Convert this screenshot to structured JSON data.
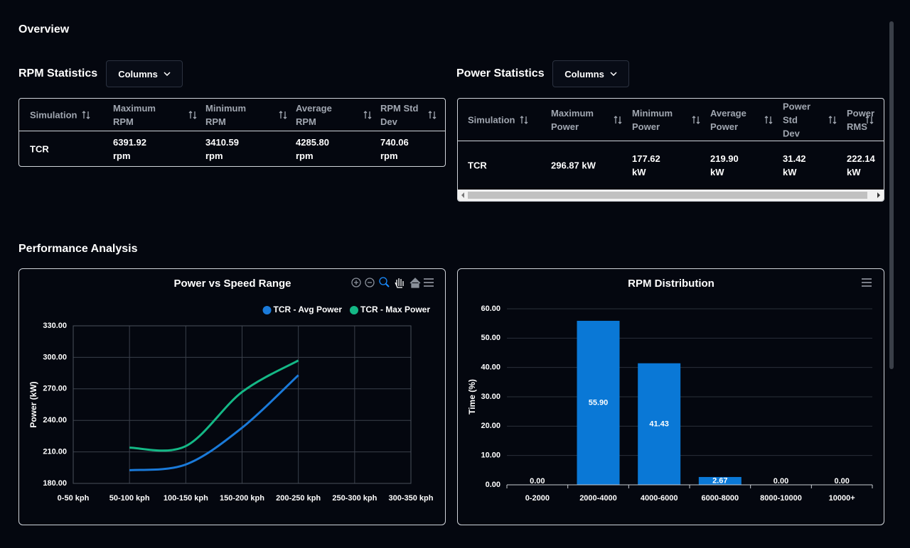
{
  "header": {
    "title": "Overview"
  },
  "rpm_table": {
    "title": "RPM Statistics",
    "button": "Columns",
    "columns": [
      "Simulation",
      "Maximum RPM",
      "Minimum RPM",
      "Average RPM",
      "RPM Std Dev"
    ],
    "rows": [
      [
        "TCR",
        "6391.92 rpm",
        "3410.59 rpm",
        "4285.80 rpm",
        "740.06 rpm"
      ]
    ]
  },
  "power_table": {
    "title": "Power Statistics",
    "button": "Columns",
    "columns": [
      "Simulation",
      "Maximum Power",
      "Minimum Power",
      "Average Power",
      "Power Std Dev",
      "Power RMS"
    ],
    "rows": [
      [
        "TCR",
        "296.87 kW",
        "177.62 kW",
        "219.90 kW",
        "31.42 kW",
        "222.14 kW"
      ]
    ]
  },
  "section": {
    "title": "Performance Analysis"
  },
  "chart_data": [
    {
      "type": "line",
      "title": "Power vs Speed Range",
      "ylabel": "Power (kW)",
      "categories": [
        "0-50 kph",
        "50-100 kph",
        "100-150 kph",
        "150-200 kph",
        "200-250 kph",
        "250-300 kph",
        "300-350 kph"
      ],
      "series": [
        {
          "name": "TCR - Avg Power",
          "color": "#1a7ad9",
          "values": [
            null,
            192.5,
            198,
            233,
            283,
            null,
            null
          ]
        },
        {
          "name": "TCR - Max Power",
          "color": "#14b886",
          "values": [
            null,
            214,
            215.5,
            267,
            297,
            null,
            null
          ]
        }
      ],
      "ylim": [
        180,
        330
      ],
      "yticks": [
        {
          "value": 180,
          "label": "180.00"
        },
        {
          "value": 210,
          "label": "210.00"
        },
        {
          "value": 240,
          "label": "240.00"
        },
        {
          "value": 270,
          "label": "270.00"
        },
        {
          "value": 300,
          "label": "300.00"
        },
        {
          "value": 330,
          "label": "330.00"
        }
      ],
      "grid": true,
      "legend": "top-right"
    },
    {
      "type": "bar",
      "title": "RPM Distribution",
      "ylabel": "Time (%)",
      "categories": [
        "0-2000",
        "2000-4000",
        "4000-6000",
        "6000-8000",
        "8000-10000",
        "10000+"
      ],
      "values": [
        0,
        55.9,
        41.43,
        2.67,
        0,
        0
      ],
      "value_labels": [
        "0.00",
        "55.90",
        "41.43",
        "2.67",
        "0.00",
        "0.00"
      ],
      "color": "#0a78d6",
      "ylim": [
        0,
        60
      ],
      "yticks": [
        {
          "value": 0,
          "label": "0.00"
        },
        {
          "value": 10,
          "label": "10.00"
        },
        {
          "value": 20,
          "label": "20.00"
        },
        {
          "value": 30,
          "label": "30.00"
        },
        {
          "value": 40,
          "label": "40.00"
        },
        {
          "value": 50,
          "label": "50.00"
        },
        {
          "value": 60,
          "label": "60.00"
        }
      ],
      "grid": true
    }
  ]
}
